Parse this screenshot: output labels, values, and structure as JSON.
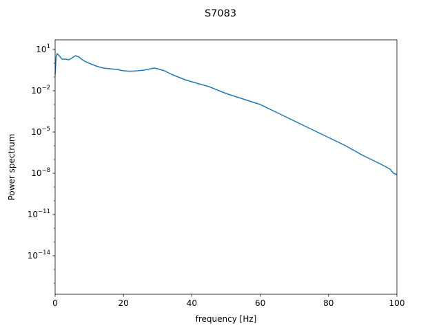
{
  "chart_data": {
    "type": "line",
    "title": "S7083",
    "xlabel": "frequency [Hz]",
    "ylabel": "Power spectrum",
    "xlim": [
      0,
      100
    ],
    "ylim_log10": [
      -16.8,
      1.7
    ],
    "yscale": "log",
    "grid": false,
    "x_ticks": [
      0,
      20,
      40,
      60,
      80,
      100
    ],
    "x_tick_labels": [
      "0",
      "20",
      "40",
      "60",
      "80",
      "100"
    ],
    "y_ticks_log10": [
      1,
      -2,
      -5,
      -8,
      -11,
      -14
    ],
    "y_tick_labels": [
      {
        "base": "10",
        "exp": "1"
      },
      {
        "base": "10",
        "exp": "−2"
      },
      {
        "base": "10",
        "exp": "−5"
      },
      {
        "base": "10",
        "exp": "−8"
      },
      {
        "base": "10",
        "exp": "−11"
      },
      {
        "base": "10",
        "exp": "−14"
      }
    ],
    "series": [
      {
        "color": "#1f77b4",
        "x": [
          0,
          0.3,
          0.6,
          1,
          1.5,
          2,
          3,
          4,
          5,
          6,
          6.5,
          7,
          7.5,
          8,
          9,
          10,
          12,
          14,
          16,
          18,
          20,
          22,
          24,
          26,
          28,
          29,
          30,
          32,
          34,
          36,
          38,
          40,
          45,
          50,
          55,
          60,
          65,
          70,
          75,
          80,
          85,
          90,
          95,
          98,
          99,
          100
        ],
        "log10_y": [
          -0.8,
          0.5,
          0.7,
          0.6,
          0.45,
          0.3,
          0.3,
          0.25,
          0.4,
          0.55,
          0.5,
          0.45,
          0.35,
          0.25,
          0.1,
          0.0,
          -0.2,
          -0.35,
          -0.4,
          -0.45,
          -0.55,
          -0.58,
          -0.55,
          -0.5,
          -0.4,
          -0.35,
          -0.4,
          -0.55,
          -0.8,
          -1.0,
          -1.2,
          -1.35,
          -1.7,
          -2.2,
          -2.6,
          -3.0,
          -3.6,
          -4.2,
          -4.8,
          -5.4,
          -6.0,
          -6.7,
          -7.3,
          -7.7,
          -8.0,
          -8.1
        ]
      }
    ]
  }
}
